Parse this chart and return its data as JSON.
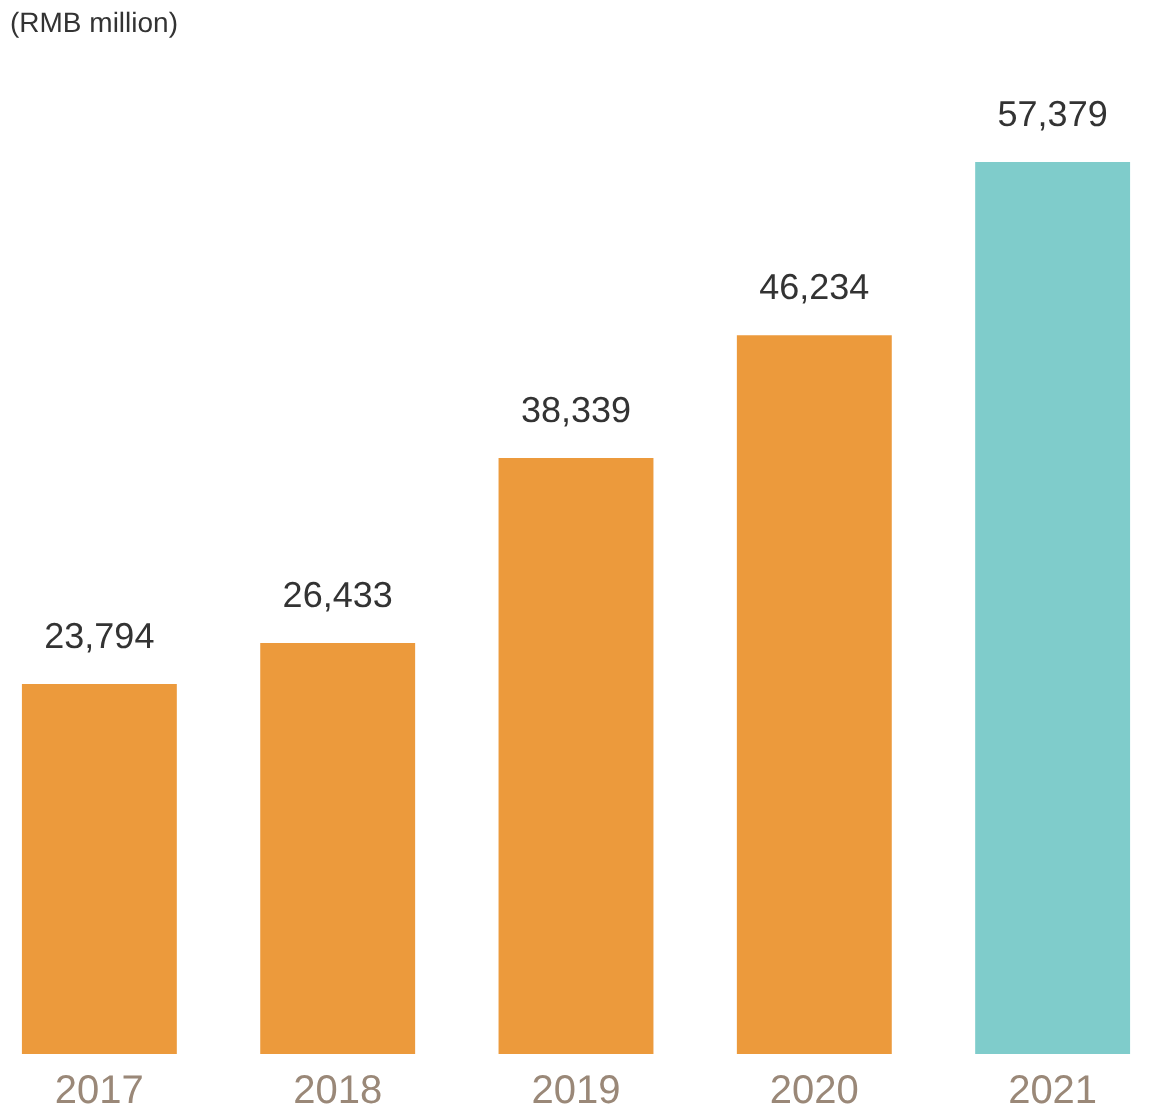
{
  "chart_data": {
    "type": "bar",
    "ylabel": "(RMB million)",
    "categories": [
      "2017",
      "2018",
      "2019",
      "2020",
      "2021"
    ],
    "values": [
      23794,
      26433,
      38339,
      46234,
      57379
    ],
    "colors": [
      "#ec9a3c",
      "#ec9a3c",
      "#ec9a3c",
      "#ec9a3c",
      "#7fcccb"
    ],
    "value_labels": [
      "23,794",
      "26,433",
      "38,339",
      "46,234",
      "57,379"
    ],
    "grid": false
  }
}
